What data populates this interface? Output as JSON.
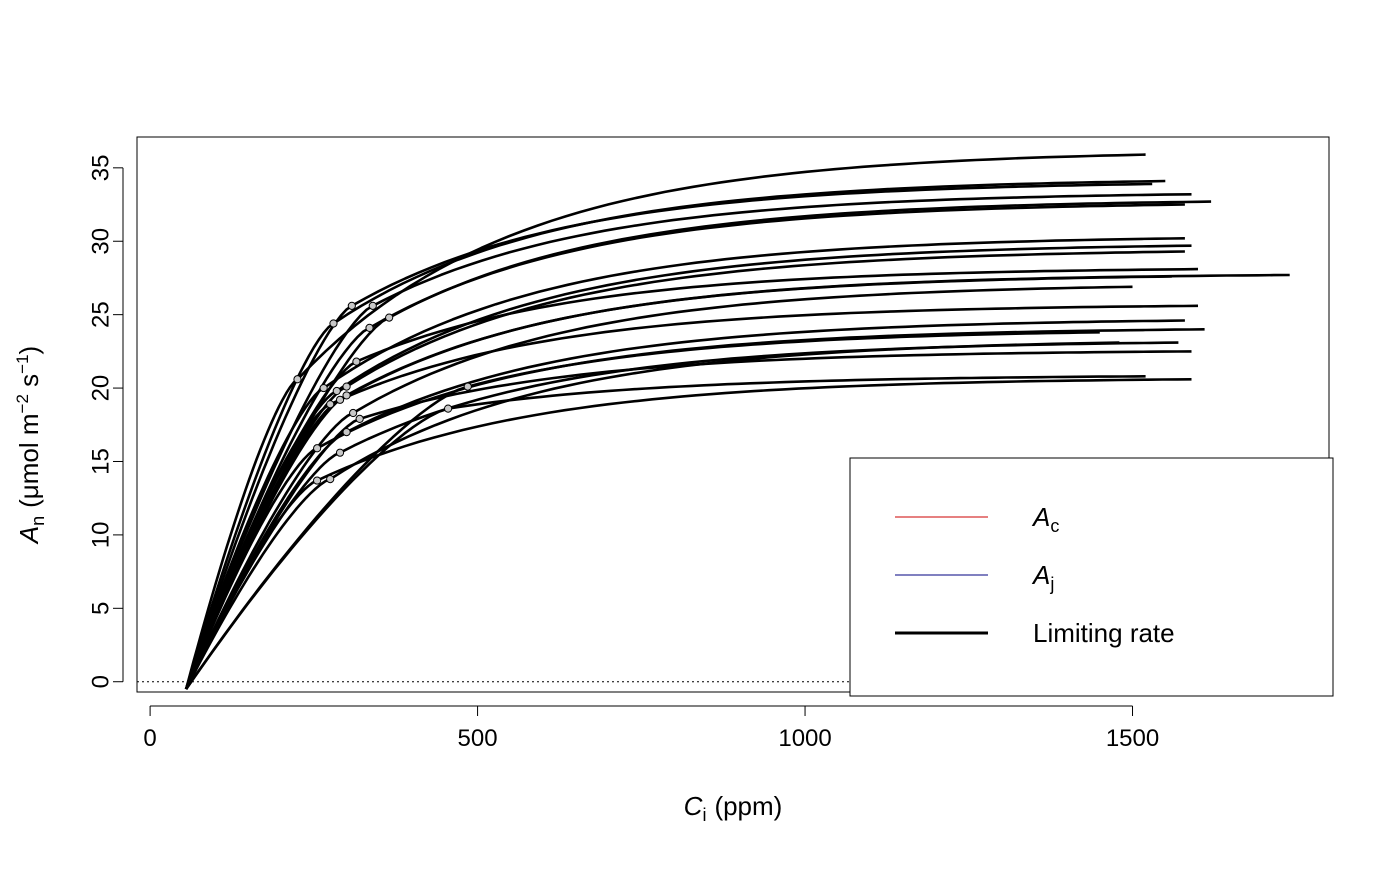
{
  "chart_data": {
    "type": "line",
    "title": "",
    "xlabel": {
      "symbol": "C",
      "subscript": "i",
      "unit": "(ppm)"
    },
    "ylabel": {
      "symbol": "A",
      "subscript": "n",
      "unit_prefix": "(μmol m",
      "unit_exp1": "−2",
      "unit_mid": " s",
      "unit_exp2": "−1",
      "unit_suffix": ")"
    },
    "xlim": [
      -20,
      1800
    ],
    "ylim": [
      -0.7,
      37.1
    ],
    "xticks": [
      0,
      500,
      1000,
      1500
    ],
    "xtick_labels": [
      "0",
      "500",
      "1000",
      "1500"
    ],
    "yticks": [
      0,
      5,
      10,
      15,
      20,
      25,
      30,
      35
    ],
    "ytick_labels": [
      "0",
      "5",
      "10",
      "15",
      "20",
      "25",
      "30",
      "35"
    ],
    "grid": false,
    "reference_line": {
      "y": 0,
      "style": "dotted"
    },
    "legend": {
      "position": "bottom-right",
      "entries": [
        {
          "symbol": "A",
          "subscript": "c",
          "label": "",
          "color": "#cc0000",
          "weight": "thin"
        },
        {
          "symbol": "A",
          "subscript": "j",
          "label": "",
          "color": "#000080",
          "weight": "thin"
        },
        {
          "symbol": "",
          "subscript": "",
          "label": "Limiting rate",
          "color": "#000000",
          "weight": "thick"
        }
      ]
    },
    "colors": {
      "limiting": "#000000",
      "transition_point_fill": "#c8c8c8",
      "Ac": "#cc0000",
      "Aj": "#000080"
    },
    "x_start": 55,
    "series": [
      {
        "x_transition": 225,
        "y_transition": 20.6,
        "x_end": 1520,
        "y_end": 35.9
      },
      {
        "x_transition": 280,
        "y_transition": 24.4,
        "x_end": 1550,
        "y_end": 34.1
      },
      {
        "x_transition": 308,
        "y_transition": 25.6,
        "x_end": 1530,
        "y_end": 33.9
      },
      {
        "x_transition": 340,
        "y_transition": 25.6,
        "x_end": 1590,
        "y_end": 33.2
      },
      {
        "x_transition": 365,
        "y_transition": 24.8,
        "x_end": 1620,
        "y_end": 32.7
      },
      {
        "x_transition": 335,
        "y_transition": 24.1,
        "x_end": 1580,
        "y_end": 32.5
      },
      {
        "x_transition": 265,
        "y_transition": 20.0,
        "x_end": 1580,
        "y_end": 30.2
      },
      {
        "x_transition": 285,
        "y_transition": 19.8,
        "x_end": 1590,
        "y_end": 29.7
      },
      {
        "x_transition": 300,
        "y_transition": 20.1,
        "x_end": 1580,
        "y_end": 29.3
      },
      {
        "x_transition": 315,
        "y_transition": 21.8,
        "x_end": 1600,
        "y_end": 28.1
      },
      {
        "x_transition": 290,
        "y_transition": 19.2,
        "x_end": 1740,
        "y_end": 27.7
      },
      {
        "x_transition": 300,
        "y_transition": 19.5,
        "x_end": 1560,
        "y_end": 27.6
      },
      {
        "x_transition": 310,
        "y_transition": 18.3,
        "x_end": 1500,
        "y_end": 26.9
      },
      {
        "x_transition": 275,
        "y_transition": 18.9,
        "x_end": 1600,
        "y_end": 25.6
      },
      {
        "x_transition": 300,
        "y_transition": 17.0,
        "x_end": 1580,
        "y_end": 24.6
      },
      {
        "x_transition": 255,
        "y_transition": 15.9,
        "x_end": 1610,
        "y_end": 24.0
      },
      {
        "x_transition": 485,
        "y_transition": 20.1,
        "x_end": 1450,
        "y_end": 23.8
      },
      {
        "x_transition": 290,
        "y_transition": 15.6,
        "x_end": 1570,
        "y_end": 23.1
      },
      {
        "x_transition": 320,
        "y_transition": 17.9,
        "x_end": 1590,
        "y_end": 22.5
      },
      {
        "x_transition": 455,
        "y_transition": 18.6,
        "x_end": 1520,
        "y_end": 20.8
      },
      {
        "x_transition": 255,
        "y_transition": 13.7,
        "x_end": 1590,
        "y_end": 20.6
      },
      {
        "x_transition": 275,
        "y_transition": 13.8,
        "x_end": 1480,
        "y_end": 23.1
      }
    ]
  }
}
